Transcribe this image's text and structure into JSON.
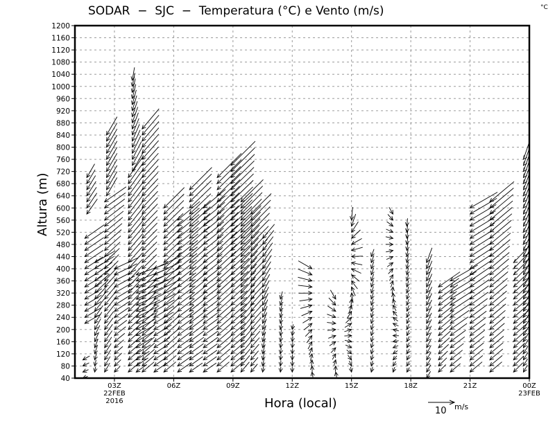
{
  "chart_data": {
    "type": "vector",
    "title": "SODAR – SJC – Temperatura (°C) e Vento (m/s)",
    "title_text": "SODAR  −  SJC  −  Temperatura (°C) e Vento (m/s)",
    "unit_corner": "°C",
    "xlabel": "Hora (local)",
    "ylabel": "Altura (m)",
    "xlim": [
      1,
      24
    ],
    "ylim": [
      40,
      1200
    ],
    "grid": true,
    "y_ticks": [
      40,
      80,
      120,
      160,
      200,
      240,
      280,
      320,
      360,
      400,
      440,
      480,
      520,
      560,
      600,
      640,
      680,
      720,
      760,
      800,
      840,
      880,
      920,
      960,
      1000,
      1040,
      1080,
      1120,
      1160,
      1200
    ],
    "x_ticks": [
      {
        "hour": 3,
        "label": "03Z",
        "sub1": "22FEB",
        "sub2": "2016"
      },
      {
        "hour": 6,
        "label": "06Z"
      },
      {
        "hour": 9,
        "label": "09Z"
      },
      {
        "hour": 12,
        "label": "12Z"
      },
      {
        "hour": 15,
        "label": "15Z"
      },
      {
        "hour": 18,
        "label": "18Z"
      },
      {
        "hour": 21,
        "label": "21Z"
      },
      {
        "hour": 24,
        "label": "00Z",
        "sub1": "23FEB"
      }
    ],
    "reference_vector": {
      "value": 10,
      "label": "10",
      "unit": "m/s"
    },
    "level_step_m": 20,
    "columns": [
      {
        "hour": 1.4,
        "bottom": 40,
        "top": 100,
        "dir_bottom": 70,
        "dir_top": 60,
        "spd_bottom": 2,
        "spd_top": 3
      },
      {
        "hour": 1.5,
        "bottom": 220,
        "top": 500,
        "dir_bottom": 60,
        "dir_top": 55,
        "spd_bottom": 7,
        "spd_top": 9
      },
      {
        "hour": 1.6,
        "bottom": 580,
        "top": 700,
        "dir_bottom": 35,
        "dir_top": 30,
        "spd_bottom": 7,
        "spd_top": 6
      },
      {
        "hour": 2.0,
        "bottom": 60,
        "top": 420,
        "dir_bottom": 10,
        "dir_top": 60,
        "spd_bottom": 2,
        "spd_top": 9
      },
      {
        "hour": 2.5,
        "bottom": 60,
        "top": 620,
        "dir_bottom": 30,
        "dir_top": 55,
        "spd_bottom": 4,
        "spd_top": 10
      },
      {
        "hour": 2.6,
        "bottom": 640,
        "top": 840,
        "dir_bottom": 30,
        "dir_top": 30,
        "spd_bottom": 8,
        "spd_top": 8
      },
      {
        "hour": 3.0,
        "bottom": 60,
        "top": 400,
        "dir_bottom": 45,
        "dir_top": 65,
        "spd_bottom": 3,
        "spd_top": 10
      },
      {
        "hour": 3.7,
        "bottom": 60,
        "top": 700,
        "dir_bottom": 50,
        "dir_top": 35,
        "spd_bottom": 6,
        "spd_top": 10
      },
      {
        "hour": 3.9,
        "bottom": 720,
        "top": 1020,
        "dir_bottom": 30,
        "dir_top": 10,
        "spd_bottom": 8,
        "spd_top": 5
      },
      {
        "hour": 4.1,
        "bottom": 60,
        "top": 380,
        "dir_bottom": 55,
        "dir_top": 70,
        "spd_bottom": 5,
        "spd_top": 13
      },
      {
        "hour": 4.4,
        "bottom": 60,
        "top": 860,
        "dir_bottom": 50,
        "dir_top": 40,
        "spd_bottom": 6,
        "spd_top": 10
      },
      {
        "hour": 5.0,
        "bottom": 60,
        "top": 400,
        "dir_bottom": 55,
        "dir_top": 65,
        "spd_bottom": 6,
        "spd_top": 11
      },
      {
        "hour": 5.5,
        "bottom": 60,
        "top": 600,
        "dir_bottom": 50,
        "dir_top": 45,
        "spd_bottom": 6,
        "spd_top": 11
      },
      {
        "hour": 6.2,
        "bottom": 60,
        "top": 560,
        "dir_bottom": 55,
        "dir_top": 50,
        "spd_bottom": 6,
        "spd_top": 11
      },
      {
        "hour": 6.8,
        "bottom": 60,
        "top": 660,
        "dir_bottom": 55,
        "dir_top": 45,
        "spd_bottom": 6,
        "spd_top": 12
      },
      {
        "hour": 7.5,
        "bottom": 60,
        "top": 600,
        "dir_bottom": 55,
        "dir_top": 50,
        "spd_bottom": 6,
        "spd_top": 11
      },
      {
        "hour": 8.2,
        "bottom": 60,
        "top": 700,
        "dir_bottom": 50,
        "dir_top": 45,
        "spd_bottom": 6,
        "spd_top": 13
      },
      {
        "hour": 8.9,
        "bottom": 60,
        "top": 740,
        "dir_bottom": 50,
        "dir_top": 45,
        "spd_bottom": 6,
        "spd_top": 13
      },
      {
        "hour": 9.4,
        "bottom": 60,
        "top": 620,
        "dir_bottom": 40,
        "dir_top": 45,
        "spd_bottom": 5,
        "spd_top": 12
      },
      {
        "hour": 9.9,
        "bottom": 60,
        "top": 580,
        "dir_bottom": 40,
        "dir_top": 45,
        "spd_bottom": 4,
        "spd_top": 11
      },
      {
        "hour": 10.5,
        "bottom": 60,
        "top": 500,
        "dir_bottom": 10,
        "dir_top": 40,
        "spd_bottom": 3,
        "spd_top": 7
      },
      {
        "hour": 11.4,
        "bottom": 60,
        "top": 300,
        "dir_bottom": 5,
        "dir_top": 15,
        "spd_bottom": 2,
        "spd_top": 3
      },
      {
        "hour": 12.0,
        "bottom": 60,
        "top": 200,
        "dir_bottom": 0,
        "dir_top": 10,
        "spd_bottom": 2,
        "spd_top": 2
      },
      {
        "hour": 13.0,
        "bottom": 60,
        "top": 400,
        "dir_bottom": 170,
        "dir_top": 300,
        "spd_bottom": 2,
        "spd_top": 6
      },
      {
        "hour": 14.2,
        "bottom": 60,
        "top": 300,
        "dir_bottom": 170,
        "dir_top": 330,
        "spd_bottom": 2,
        "spd_top": 4
      },
      {
        "hour": 15.0,
        "bottom": 60,
        "top": 560,
        "dir_bottom": 350,
        "dir_top": 5,
        "spd_bottom": 2,
        "spd_top": 5
      },
      {
        "hour": 16.0,
        "bottom": 60,
        "top": 440,
        "dir_bottom": 15,
        "dir_top": 20,
        "spd_bottom": 2,
        "spd_top": 3
      },
      {
        "hour": 17.1,
        "bottom": 60,
        "top": 580,
        "dir_bottom": 20,
        "dir_top": 330,
        "spd_bottom": 2,
        "spd_top": 3
      },
      {
        "hour": 17.8,
        "bottom": 60,
        "top": 540,
        "dir_bottom": 30,
        "dir_top": 5,
        "spd_bottom": 2,
        "spd_top": 3
      },
      {
        "hour": 18.8,
        "bottom": 40,
        "top": 420,
        "dir_bottom": 30,
        "dir_top": 20,
        "spd_bottom": 3,
        "spd_top": 6
      },
      {
        "hour": 19.4,
        "bottom": 60,
        "top": 340,
        "dir_bottom": 45,
        "dir_top": 55,
        "spd_bottom": 4,
        "spd_top": 10
      },
      {
        "hour": 20.0,
        "bottom": 60,
        "top": 360,
        "dir_bottom": 50,
        "dir_top": 60,
        "spd_bottom": 5,
        "spd_top": 12
      },
      {
        "hour": 21.0,
        "bottom": 60,
        "top": 600,
        "dir_bottom": 50,
        "dir_top": 60,
        "spd_bottom": 6,
        "spd_top": 12
      },
      {
        "hour": 22.0,
        "bottom": 60,
        "top": 620,
        "dir_bottom": 50,
        "dir_top": 50,
        "spd_bottom": 6,
        "spd_top": 12
      },
      {
        "hour": 23.2,
        "bottom": 60,
        "top": 420,
        "dir_bottom": 45,
        "dir_top": 55,
        "spd_bottom": 5,
        "spd_top": 11
      },
      {
        "hour": 23.7,
        "bottom": 60,
        "top": 760,
        "dir_bottom": 30,
        "dir_top": 35,
        "spd_bottom": 3,
        "spd_top": 8
      }
    ]
  }
}
